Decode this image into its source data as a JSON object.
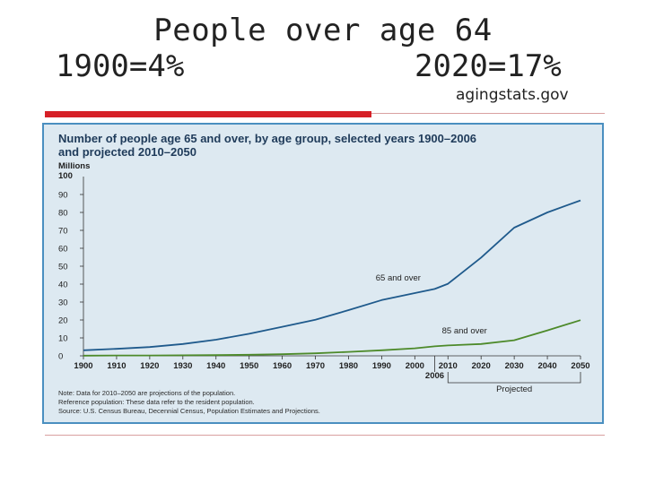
{
  "slide": {
    "title": "People over age 64",
    "stat_left": "1900=4%",
    "stat_right": "2020=17%",
    "source": "agingstats.gov"
  },
  "colors": {
    "accent_bar": "#d62027",
    "series_65": "#1f5a8c",
    "series_85": "#4d8a2a",
    "panel": "#dde9f1"
  },
  "chart_data": {
    "type": "line",
    "title": "Number of people age 65 and over, by age group, selected years 1900–2006 and projected 2010–2050",
    "title_lines": [
      "Number of people age 65 and over, by age group, selected years 1900–2006",
      "and projected 2010–2050"
    ],
    "ylabel_lines": [
      "Millions",
      "100"
    ],
    "xlabel": "",
    "ylim": [
      0,
      100
    ],
    "xlim": [
      1900,
      2050
    ],
    "yticks": [
      "90",
      "80",
      "70",
      "60",
      "50",
      "40",
      "30",
      "20",
      "10",
      "0"
    ],
    "ytick_values": [
      90,
      80,
      70,
      60,
      50,
      40,
      30,
      20,
      10,
      0
    ],
    "xticks": [
      "1900",
      "1910",
      "1920",
      "1930",
      "1940",
      "1950",
      "1960",
      "1970",
      "1980",
      "1990",
      "2000",
      "2010",
      "2020",
      "2030",
      "2040",
      "2050"
    ],
    "xtick_values": [
      1900,
      1910,
      1920,
      1930,
      1940,
      1950,
      1960,
      1970,
      1980,
      1990,
      2000,
      2010,
      2020,
      2030,
      2040,
      2050
    ],
    "extra_tick": "2006",
    "extra_tick_value": 2006,
    "projected_label": "Projected",
    "projected_range": [
      2010,
      2050
    ],
    "series": [
      {
        "name": "65 and over",
        "x": [
          1900,
          1910,
          1920,
          1930,
          1940,
          1950,
          1960,
          1970,
          1980,
          1990,
          2000,
          2006,
          2010,
          2020,
          2030,
          2040,
          2050
        ],
        "values": [
          3.1,
          3.9,
          4.9,
          6.6,
          9.0,
          12.3,
          16.2,
          20.1,
          25.5,
          31.1,
          35.0,
          37.3,
          40.2,
          54.8,
          71.5,
          80.0,
          86.7
        ]
      },
      {
        "name": "85 and over",
        "x": [
          1900,
          1910,
          1920,
          1930,
          1940,
          1950,
          1960,
          1970,
          1980,
          1990,
          2000,
          2006,
          2010,
          2020,
          2030,
          2040,
          2050
        ],
        "values": [
          0.1,
          0.2,
          0.2,
          0.3,
          0.4,
          0.6,
          0.9,
          1.4,
          2.2,
          3.1,
          4.2,
          5.3,
          5.8,
          6.6,
          8.7,
          14.2,
          19.9
        ]
      }
    ],
    "notes": [
      "Note: Data for 2010–2050 are projections of the population.",
      "Reference population: These data refer to the resident population.",
      "Source: U.S. Census Bureau, Decennial Census, Population Estimates and Projections."
    ]
  }
}
